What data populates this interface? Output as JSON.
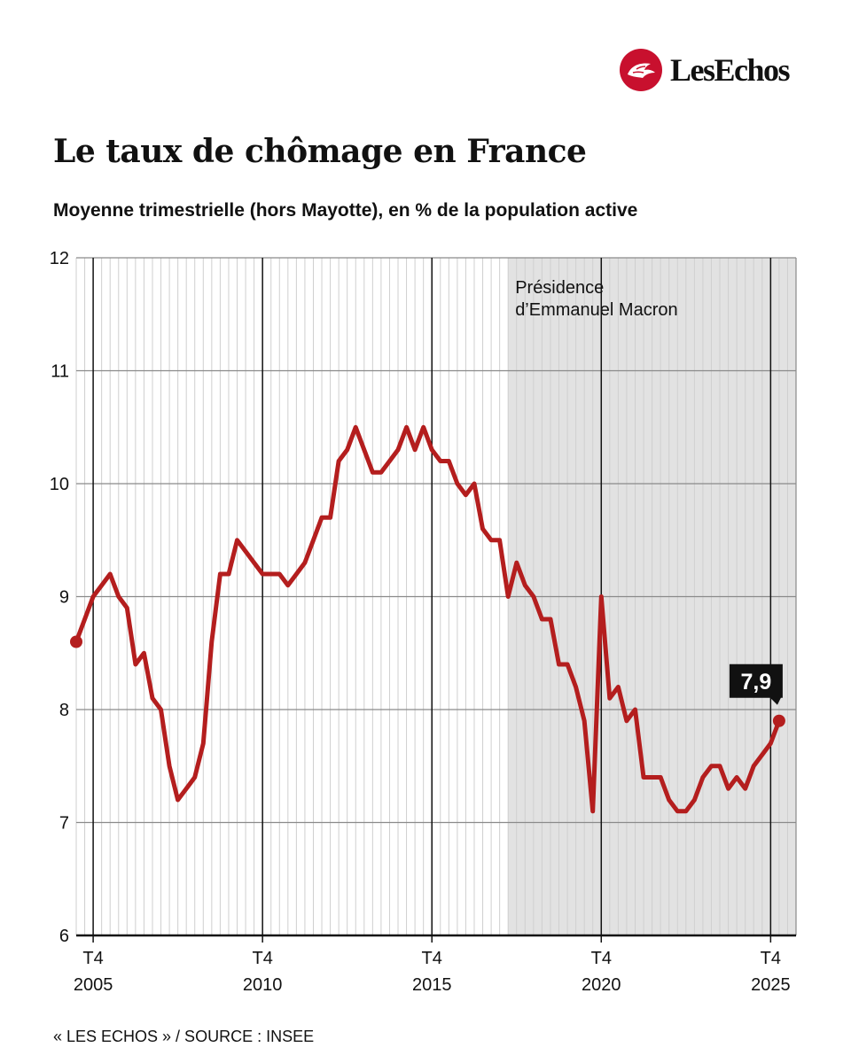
{
  "brand": {
    "name": "LesEchos",
    "color": "#c8102e"
  },
  "header": {
    "title": "Le taux de chômage en France",
    "subtitle": "Moyenne trimestrielle (hors Mayotte), en % de la population active"
  },
  "footer": {
    "source": "« LES ECHOS » / SOURCE : INSEE"
  },
  "chart_data": {
    "type": "line",
    "title": "Le taux de chômage en France",
    "subtitle": "Moyenne trimestrielle (hors Mayotte), en % de la population active",
    "ylim": [
      6,
      12
    ],
    "y_ticks": [
      6,
      7,
      8,
      9,
      10,
      11,
      12
    ],
    "x_range": [
      2004.5,
      2025.75
    ],
    "x_ticks": [
      {
        "x": 2005,
        "quarter": "T4",
        "year": "2005"
      },
      {
        "x": 2010,
        "quarter": "T4",
        "year": "2010"
      },
      {
        "x": 2015,
        "quarter": "T4",
        "year": "2015"
      },
      {
        "x": 2020,
        "quarter": "T4",
        "year": "2020"
      },
      {
        "x": 2025,
        "quarter": "T4",
        "year": "2025"
      }
    ],
    "grid": true,
    "line_color": "#b41e1e",
    "shade_color": "#e2e2e2",
    "shaded_period": {
      "start": 2017.25,
      "end": 2025.75,
      "label_line1": "Présidence",
      "label_line2": "d’Emmanuel Macron"
    },
    "last_value_label": "7,9",
    "series": [
      {
        "values": [
          [
            2004.5,
            8.6
          ],
          [
            2004.75,
            8.8
          ],
          [
            2005.0,
            9.0
          ],
          [
            2005.25,
            9.1
          ],
          [
            2005.5,
            9.2
          ],
          [
            2005.75,
            9.0
          ],
          [
            2006.0,
            8.9
          ],
          [
            2006.25,
            8.4
          ],
          [
            2006.5,
            8.5
          ],
          [
            2006.75,
            8.1
          ],
          [
            2007.0,
            8.0
          ],
          [
            2007.25,
            7.5
          ],
          [
            2007.5,
            7.2
          ],
          [
            2007.75,
            7.3
          ],
          [
            2008.0,
            7.4
          ],
          [
            2008.25,
            7.7
          ],
          [
            2008.5,
            8.6
          ],
          [
            2008.75,
            9.2
          ],
          [
            2009.0,
            9.2
          ],
          [
            2009.25,
            9.5
          ],
          [
            2009.5,
            9.4
          ],
          [
            2009.75,
            9.3
          ],
          [
            2010.0,
            9.2
          ],
          [
            2010.25,
            9.2
          ],
          [
            2010.5,
            9.2
          ],
          [
            2010.75,
            9.1
          ],
          [
            2011.0,
            9.2
          ],
          [
            2011.25,
            9.3
          ],
          [
            2011.5,
            9.5
          ],
          [
            2011.75,
            9.7
          ],
          [
            2012.0,
            9.7
          ],
          [
            2012.25,
            10.2
          ],
          [
            2012.5,
            10.3
          ],
          [
            2012.75,
            10.5
          ],
          [
            2013.0,
            10.3
          ],
          [
            2013.25,
            10.1
          ],
          [
            2013.5,
            10.1
          ],
          [
            2013.75,
            10.2
          ],
          [
            2014.0,
            10.3
          ],
          [
            2014.25,
            10.5
          ],
          [
            2014.5,
            10.3
          ],
          [
            2014.75,
            10.5
          ],
          [
            2015.0,
            10.3
          ],
          [
            2015.25,
            10.2
          ],
          [
            2015.5,
            10.2
          ],
          [
            2015.75,
            10.0
          ],
          [
            2016.0,
            9.9
          ],
          [
            2016.25,
            10.0
          ],
          [
            2016.5,
            9.6
          ],
          [
            2016.75,
            9.5
          ],
          [
            2017.0,
            9.5
          ],
          [
            2017.25,
            9.0
          ],
          [
            2017.5,
            9.3
          ],
          [
            2017.75,
            9.1
          ],
          [
            2018.0,
            9.0
          ],
          [
            2018.25,
            8.8
          ],
          [
            2018.5,
            8.8
          ],
          [
            2018.75,
            8.4
          ],
          [
            2019.0,
            8.4
          ],
          [
            2019.25,
            8.2
          ],
          [
            2019.5,
            7.9
          ],
          [
            2019.75,
            7.1
          ],
          [
            2020.0,
            9.0
          ],
          [
            2020.25,
            8.1
          ],
          [
            2020.5,
            8.2
          ],
          [
            2020.75,
            7.9
          ],
          [
            2021.0,
            8.0
          ],
          [
            2021.25,
            7.4
          ],
          [
            2021.5,
            7.4
          ],
          [
            2021.75,
            7.4
          ],
          [
            2022.0,
            7.2
          ],
          [
            2022.25,
            7.1
          ],
          [
            2022.5,
            7.1
          ],
          [
            2022.75,
            7.2
          ],
          [
            2023.0,
            7.4
          ],
          [
            2023.25,
            7.5
          ],
          [
            2023.5,
            7.5
          ],
          [
            2023.75,
            7.3
          ],
          [
            2024.0,
            7.4
          ],
          [
            2024.25,
            7.3
          ],
          [
            2024.5,
            7.5
          ],
          [
            2024.75,
            7.6
          ],
          [
            2025.0,
            7.7
          ],
          [
            2025.25,
            7.9
          ]
        ]
      }
    ]
  }
}
